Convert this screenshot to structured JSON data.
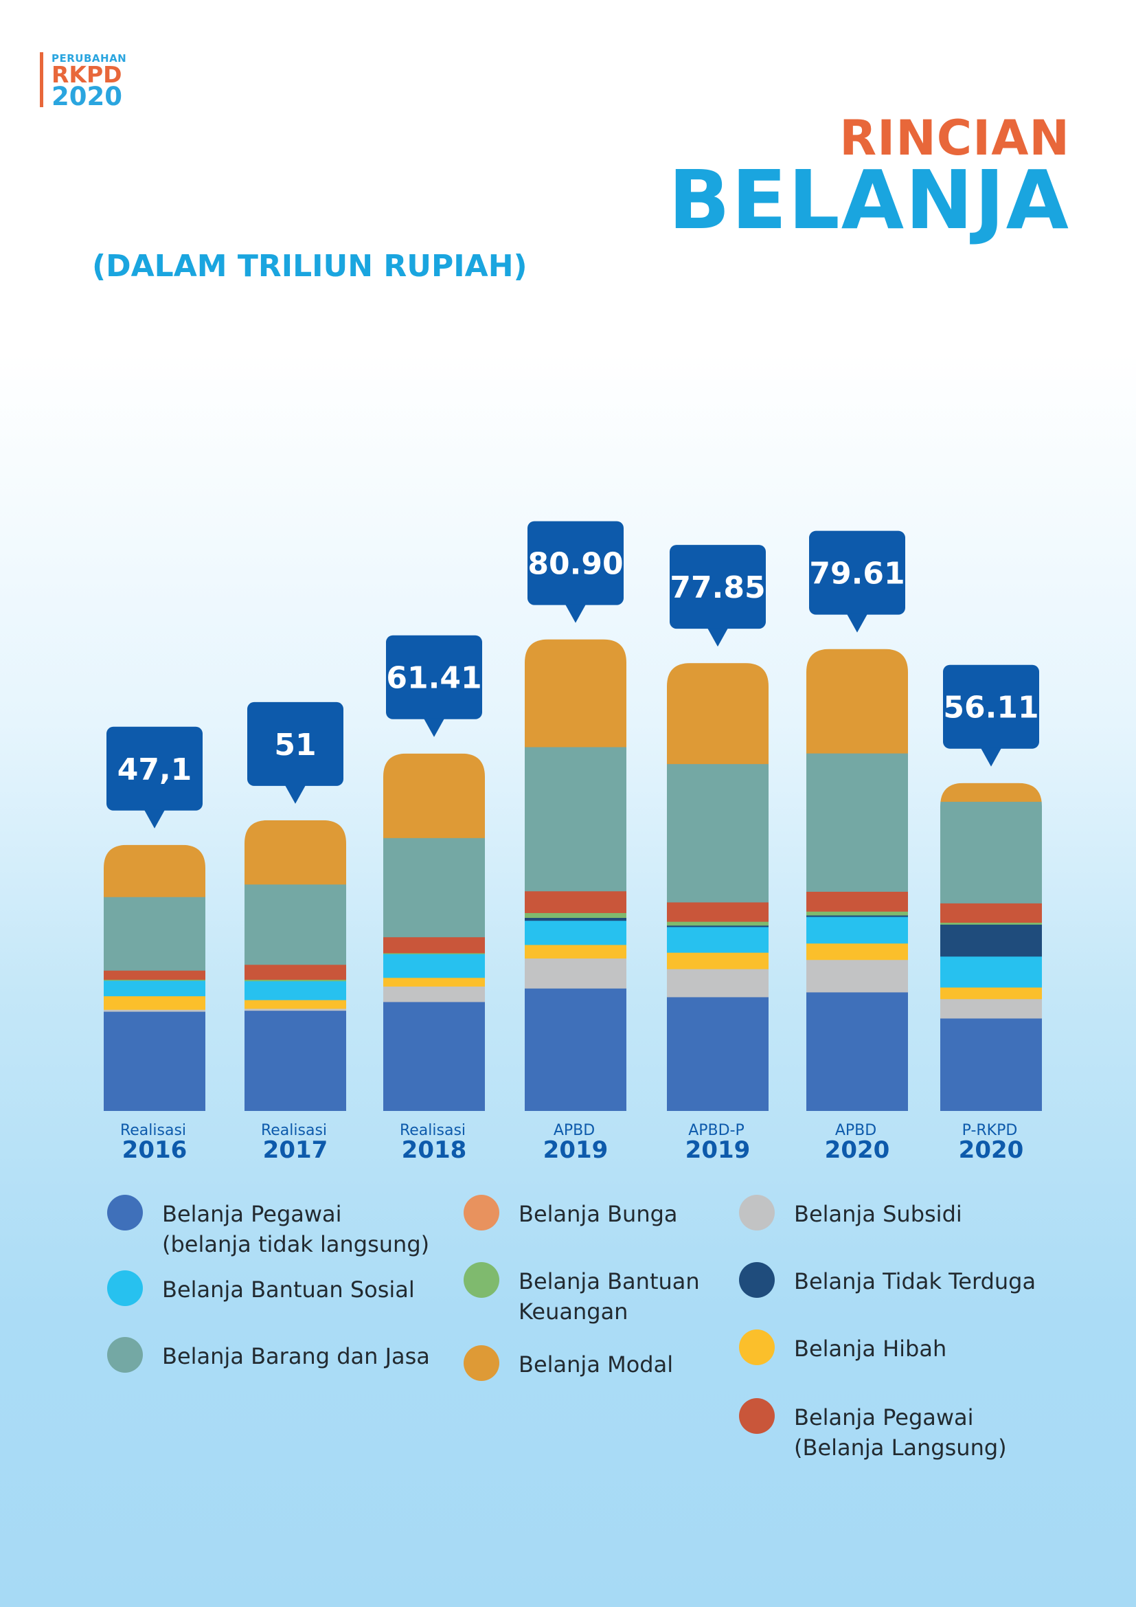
{
  "logo": {
    "line1": "PERUBAHAN",
    "line2": "RKPD",
    "line3": "2020"
  },
  "header": {
    "title_top": "RINCIAN",
    "title_main": "BELANJA",
    "unit": "(DALAM TRILIUN RUPIAH)"
  },
  "colors": {
    "pegawai_tl": "#3f70ba",
    "bansos": "#27c1ef",
    "barang_jasa": "#74a8a4",
    "bunga": "#e8925e",
    "bantuan_keuangan": "#7fba6e",
    "modal": "#de9a36",
    "subsidi": "#c2c3c4",
    "tidak_terduga": "#1f4c7c",
    "hibah": "#fbbf2b",
    "pegawai_l": "#c9563a",
    "callout": "#0d5aab",
    "category_text": "#0d5aab"
  },
  "chart_data": {
    "type": "bar",
    "stacked": true,
    "grid": false,
    "unit": "Triliun Rupiah",
    "categories": [
      {
        "label": "Realisasi",
        "year": "2016",
        "total_label": "47,1",
        "total": 47.1
      },
      {
        "label": "Realisasi",
        "year": "2017",
        "total_label": "51",
        "total": 51.0
      },
      {
        "label": "Realisasi",
        "year": "2018",
        "total_label": "61.41",
        "total": 61.41
      },
      {
        "label": "APBD",
        "year": "2019",
        "total_label": "80.90",
        "total": 80.9
      },
      {
        "label": "APBD-P",
        "year": "2019",
        "total_label": "77.85",
        "total": 77.85
      },
      {
        "label": "APBD",
        "year": "2020",
        "total_label": "79.61",
        "total": 79.61
      },
      {
        "label": "P-RKPD",
        "year": "2020",
        "total_label": "56.11",
        "total": 56.11
      }
    ],
    "series": [
      {
        "key": "pegawai_tl",
        "values": [
          20.6,
          20.8,
          22.6,
          25.4,
          23.6,
          24.6,
          19.2
        ]
      },
      {
        "key": "subsidi",
        "values": [
          0.4,
          0.4,
          3.2,
          6.2,
          5.8,
          6.7,
          4.0
        ]
      },
      {
        "key": "hibah",
        "values": [
          2.8,
          1.8,
          1.8,
          2.8,
          3.4,
          3.4,
          2.4
        ]
      },
      {
        "key": "bansos",
        "values": [
          3.2,
          3.9,
          4.9,
          5.0,
          5.3,
          5.5,
          6.4
        ]
      },
      {
        "key": "tidak_terduga",
        "values": [
          0,
          0,
          0,
          0.6,
          0.3,
          0.3,
          6.6
        ]
      },
      {
        "key": "bantuan_keuangan",
        "values": [
          0.2,
          0.3,
          0.2,
          1.0,
          0.8,
          0.8,
          0.4
        ]
      },
      {
        "key": "bunga",
        "values": [
          0,
          0,
          0,
          0,
          0,
          0,
          0
        ]
      },
      {
        "key": "pegawai_l",
        "values": [
          1.9,
          3.1,
          3.3,
          4.5,
          4.0,
          4.1,
          4.0
        ]
      },
      {
        "key": "barang_jasa",
        "values": [
          15.2,
          16.6,
          20.5,
          29.8,
          28.6,
          28.6,
          21.0
        ]
      },
      {
        "key": "modal",
        "values": [
          10.7,
          13.2,
          17.4,
          22.2,
          20.8,
          21.5,
          3.8
        ]
      }
    ]
  },
  "legend": [
    {
      "key": "pegawai_tl",
      "label": "Belanja Pegawai\n(belanja tidak langsung)"
    },
    {
      "key": "bansos",
      "label": "Belanja Bantuan Sosial"
    },
    {
      "key": "barang_jasa",
      "label": "Belanja Barang dan Jasa"
    },
    {
      "key": "bunga",
      "label": "Belanja Bunga"
    },
    {
      "key": "bantuan_keuangan",
      "label": "Belanja Bantuan\nKeuangan"
    },
    {
      "key": "modal",
      "label": "Belanja Modal"
    },
    {
      "key": "subsidi",
      "label": "Belanja Subsidi"
    },
    {
      "key": "tidak_terduga",
      "label": "Belanja Tidak Terduga"
    },
    {
      "key": "hibah",
      "label": "Belanja Hibah"
    },
    {
      "key": "pegawai_l",
      "label": "Belanja Pegawai\n(Belanja Langsung)"
    }
  ]
}
